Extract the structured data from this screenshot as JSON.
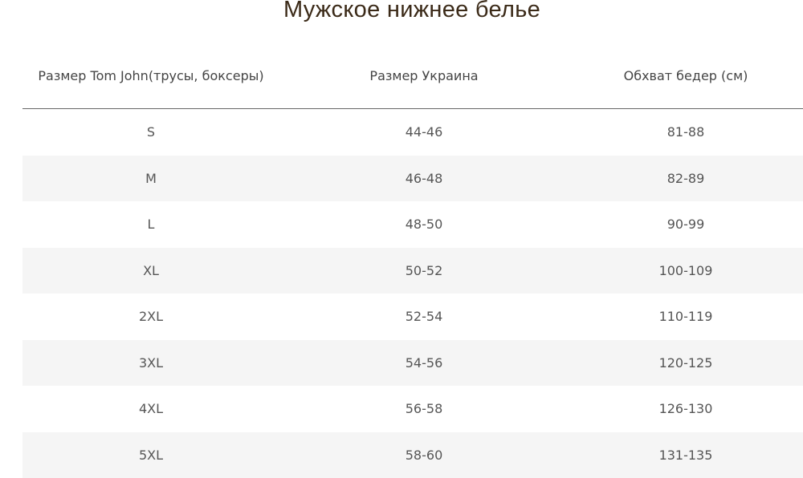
{
  "title": "Мужское нижнее белье",
  "table": {
    "headers": [
      "Размер Tom John(трусы, боксеры)",
      "Размер Украина",
      "Обхват бедер (см)"
    ],
    "rows": [
      [
        "S",
        "44-46",
        "81-88"
      ],
      [
        "M",
        "46-48",
        "82-89"
      ],
      [
        "L",
        "48-50",
        "90-99"
      ],
      [
        "XL",
        "50-52",
        "100-109"
      ],
      [
        "2XL",
        "52-54",
        "110-119"
      ],
      [
        "3XL",
        "54-56",
        "120-125"
      ],
      [
        "4XL",
        "56-58",
        "126-130"
      ],
      [
        "5XL",
        "58-60",
        "131-135"
      ]
    ]
  },
  "colors": {
    "title": "#3b2a18",
    "stripe": "#f5f5f5"
  }
}
